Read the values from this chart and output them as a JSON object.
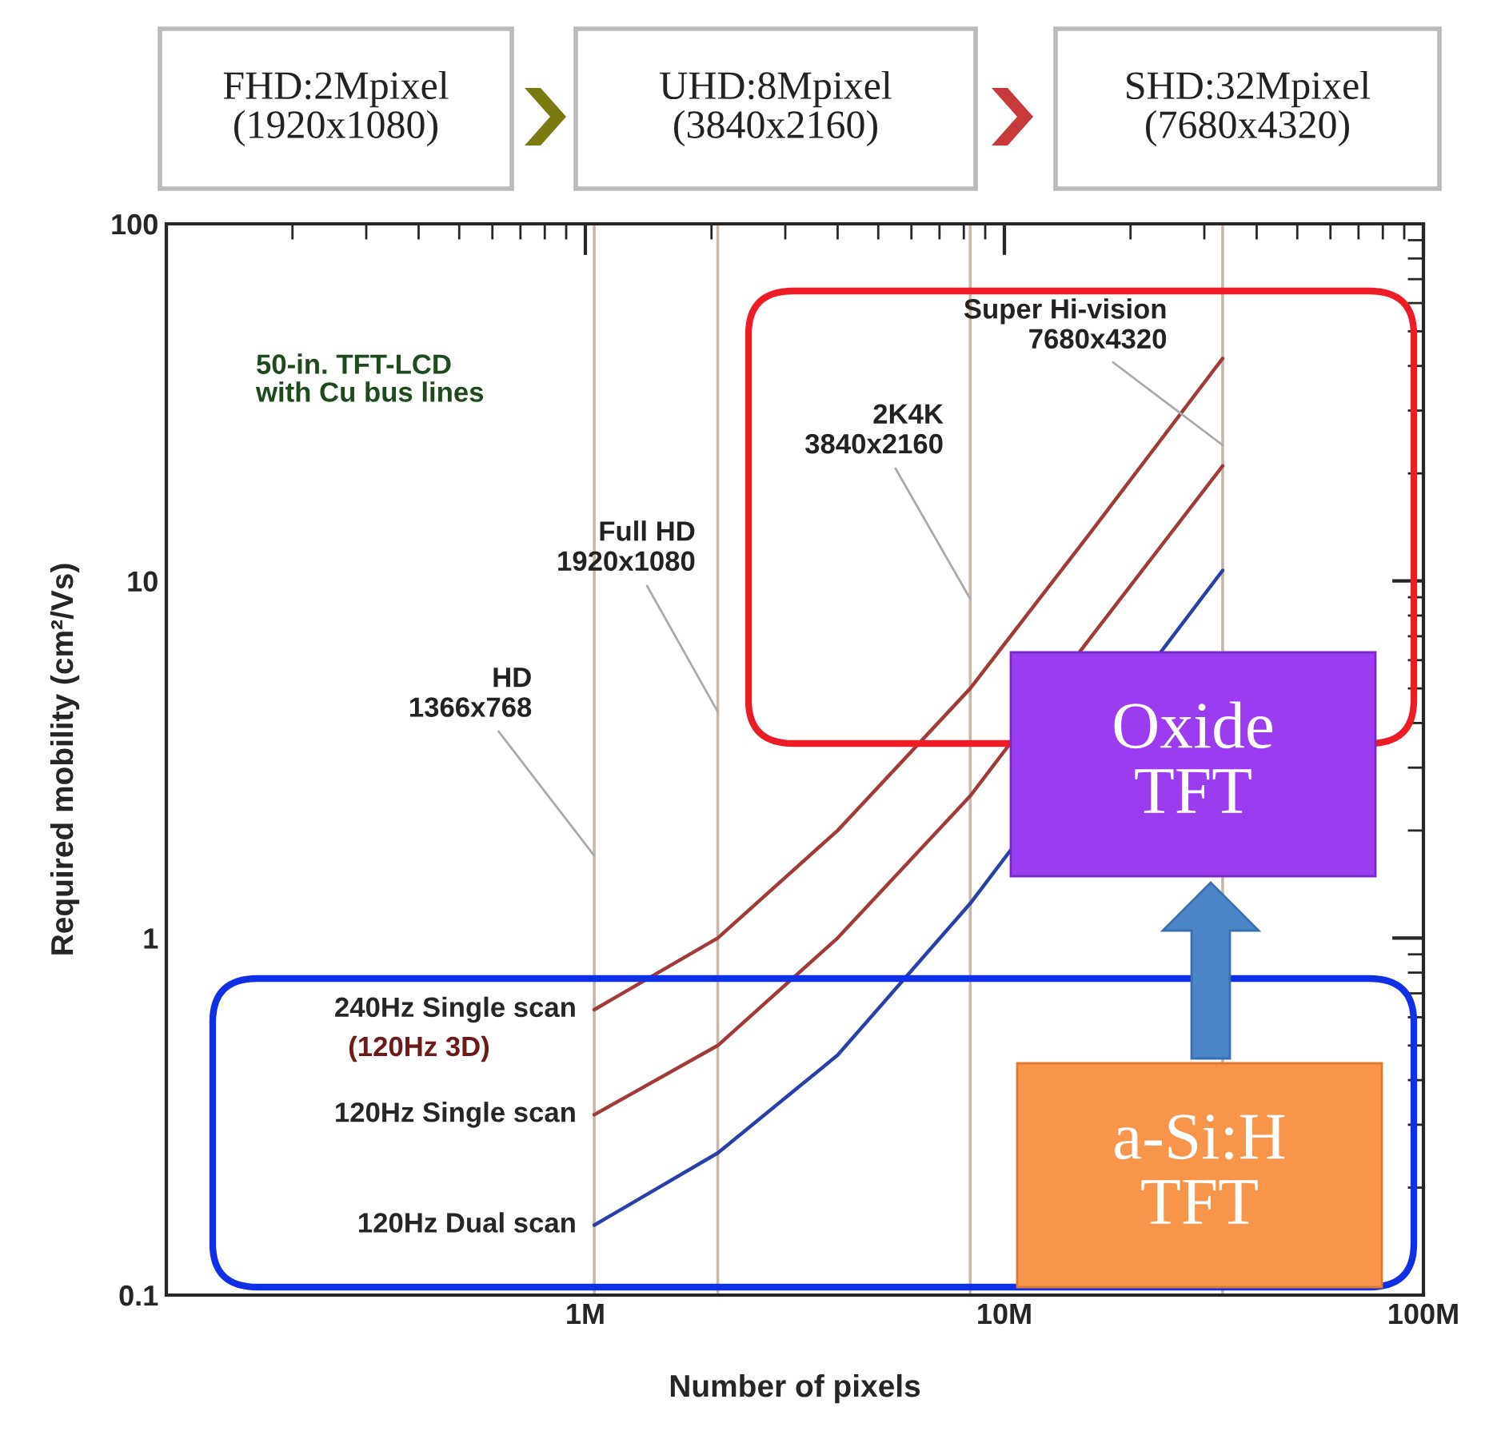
{
  "chart_data": {
    "type": "line",
    "xlabel": "Number of pixels",
    "ylabel": "Required mobility (cm²/Vs)",
    "log": "xy",
    "xlim": [
      100000,
      100000000
    ],
    "ylim": [
      0.1,
      100
    ],
    "xticks": [
      {
        "value": 1000000,
        "label": "1M"
      },
      {
        "value": 10000000,
        "label": "10M"
      },
      {
        "value": 100000000,
        "label": "100M"
      }
    ],
    "yticks": [
      0.1,
      1,
      10,
      100
    ],
    "x": [
      1050000,
      2070000,
      4000000,
      8290000,
      16000000,
      33180000
    ],
    "series": [
      {
        "name": "240Hz Single scan",
        "color": "#a33a3a",
        "values": [
          0.63,
          1.0,
          2.0,
          5.0,
          13.6,
          42
        ]
      },
      {
        "name": "120Hz Single scan",
        "color": "#a33a3a",
        "values": [
          0.32,
          0.5,
          1.0,
          2.5,
          6.9,
          21
        ]
      },
      {
        "name": "120Hz Dual scan",
        "color": "#2a3fa8",
        "x": [
          1050000,
          2070000,
          4000000,
          8290000,
          33180000
        ],
        "values": [
          0.157,
          0.25,
          0.47,
          1.25,
          10.7
        ]
      }
    ],
    "ref_lines": [
      {
        "axis": "x",
        "value": 1050000,
        "color": "#c8b8a8"
      },
      {
        "axis": "x",
        "value": 2070000,
        "color": "#c8b8a8"
      },
      {
        "axis": "x",
        "value": 8290000,
        "color": "#c8b8a8"
      },
      {
        "axis": "x",
        "value": 33180000,
        "color": "#c8b8a8"
      }
    ],
    "annotations": [
      "50-in. TFT-LCD\nwith Cu bus lines",
      "FHD:2Mpixel\n(1920x1080)",
      "UHD:8Mpixel\n(3840x2160)",
      "SHD:32Mpixel\n(7680x4320)",
      "Oxide\nTFT",
      "a-Si:H\nTFT",
      {
        "text": "HD\n1366x768",
        "x": 1050000,
        "y": 1.7
      },
      {
        "text": "Full HD\n1920x1080",
        "x": 2070000,
        "y": 4.3
      },
      {
        "text": "2K4K\n3840x2160",
        "x": 8290000,
        "y": 8.9
      },
      {
        "text": "Super Hi-vision\n7680x4320",
        "x": 33180000,
        "y": 24
      },
      "(120Hz 3D)"
    ],
    "legend": false,
    "grid": false,
    "marker": "none",
    "line_style": "solid"
  }
}
